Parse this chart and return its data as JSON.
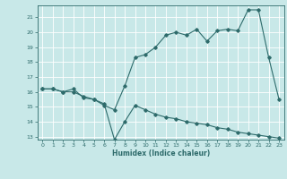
{
  "title": "",
  "xlabel": "Humidex (Indice chaleur)",
  "bg_color": "#c8e8e8",
  "grid_color": "#ffffff",
  "line_color": "#2e6b6b",
  "ylim": [
    12.8,
    21.8
  ],
  "xlim": [
    -0.5,
    23.5
  ],
  "yticks": [
    13,
    14,
    15,
    16,
    17,
    18,
    19,
    20,
    21
  ],
  "xticks": [
    0,
    1,
    2,
    3,
    4,
    5,
    6,
    7,
    8,
    9,
    10,
    11,
    12,
    13,
    14,
    15,
    16,
    17,
    18,
    19,
    20,
    21,
    22,
    23
  ],
  "line1_x": [
    0,
    1,
    2,
    3,
    4,
    5,
    6,
    7,
    8,
    9,
    10,
    11,
    12,
    13,
    14,
    15,
    16,
    17,
    18,
    19,
    20,
    21,
    22,
    23
  ],
  "line1_y": [
    16.2,
    16.2,
    16.0,
    16.2,
    15.6,
    15.5,
    15.1,
    14.8,
    16.4,
    18.3,
    18.5,
    19.0,
    19.8,
    20.0,
    19.8,
    20.2,
    19.4,
    20.1,
    20.2,
    20.1,
    21.5,
    21.5,
    18.3,
    15.5
  ],
  "line2_x": [
    0,
    1,
    2,
    3,
    4,
    5,
    6,
    7,
    8,
    9,
    10,
    11,
    12,
    13,
    14,
    15,
    16,
    17,
    18,
    19,
    20,
    21,
    22,
    23
  ],
  "line2_y": [
    16.2,
    16.2,
    16.0,
    16.0,
    15.7,
    15.5,
    15.2,
    12.8,
    14.0,
    15.1,
    14.8,
    14.5,
    14.3,
    14.2,
    14.0,
    13.9,
    13.8,
    13.6,
    13.5,
    13.3,
    13.2,
    13.1,
    13.0,
    12.9
  ]
}
